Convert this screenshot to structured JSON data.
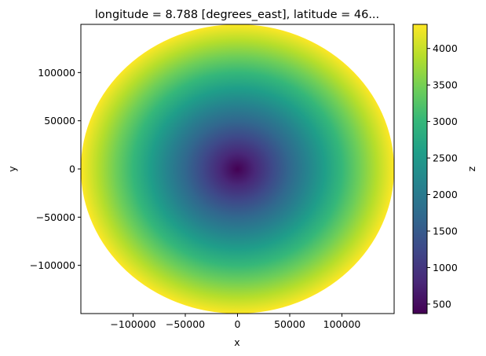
{
  "chart_data": {
    "type": "heatmap",
    "title": "longitude = 8.788 [degrees_east], latitude = 46...",
    "xlabel": "x",
    "ylabel": "y",
    "colorbar_label": "z",
    "xlim": [
      -150000,
      150000
    ],
    "ylim": [
      -150000,
      150000
    ],
    "x_ticks": [
      {
        "value": -100000,
        "label": "−100000"
      },
      {
        "value": -50000,
        "label": "−50000"
      },
      {
        "value": 0,
        "label": "0"
      },
      {
        "value": 50000,
        "label": "50000"
      },
      {
        "value": 100000,
        "label": "100000"
      }
    ],
    "y_ticks": [
      {
        "value": 100000,
        "label": "100000"
      },
      {
        "value": 50000,
        "label": "50000"
      },
      {
        "value": 0,
        "label": "0"
      },
      {
        "value": -50000,
        "label": "−50000"
      },
      {
        "value": -100000,
        "label": "−100000"
      }
    ],
    "colorbar_ticks": [
      {
        "value": 500,
        "label": "500"
      },
      {
        "value": 1000,
        "label": "1000"
      },
      {
        "value": 1500,
        "label": "1500"
      },
      {
        "value": 2000,
        "label": "2000"
      },
      {
        "value": 2500,
        "label": "2500"
      },
      {
        "value": 3000,
        "label": "3000"
      },
      {
        "value": 3500,
        "label": "3500"
      },
      {
        "value": 4000,
        "label": "4000"
      }
    ],
    "colorbar_range": [
      370,
      4330
    ],
    "colormap": "viridis",
    "field": {
      "shape": "radial disk",
      "center": [
        0,
        0
      ],
      "radius": 150000,
      "value_at_center": 370,
      "value_at_edge": 4330
    },
    "grid": false
  },
  "colors": {
    "viridis_stops": [
      "#440154",
      "#482878",
      "#3e4989",
      "#31688e",
      "#26828e",
      "#1f9e89",
      "#35b779",
      "#6ece58",
      "#b5de2b",
      "#fde725"
    ]
  }
}
